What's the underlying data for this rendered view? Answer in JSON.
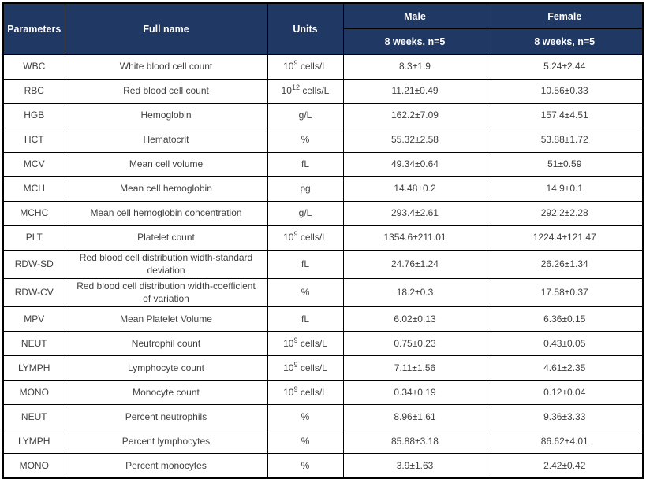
{
  "table": {
    "header": {
      "parameters": "Parameters",
      "full_name": "Full name",
      "units": "Units",
      "male": "Male",
      "female": "Female",
      "male_subheader": "8 weeks, n=5",
      "female_subheader": "8 weeks, n=5"
    },
    "rows": [
      {
        "param": "WBC",
        "full_name": "White blood cell count",
        "units": "10⁹ cells/L",
        "male": "8.3±1.9",
        "female": "5.24±2.44"
      },
      {
        "param": "RBC",
        "full_name": "Red blood cell count",
        "units": "10¹² cells/L",
        "male": "11.21±0.49",
        "female": "10.56±0.33"
      },
      {
        "param": "HGB",
        "full_name": "Hemoglobin",
        "units": "g/L",
        "male": "162.2±7.09",
        "female": "157.4±4.51"
      },
      {
        "param": "HCT",
        "full_name": "Hematocrit",
        "units": "%",
        "male": "55.32±2.58",
        "female": "53.88±1.72"
      },
      {
        "param": "MCV",
        "full_name": "Mean cell volume",
        "units": "fL",
        "male": "49.34±0.64",
        "female": "51±0.59"
      },
      {
        "param": "MCH",
        "full_name": "Mean cell hemoglobin",
        "units": "pg",
        "male": "14.48±0.2",
        "female": "14.9±0.1"
      },
      {
        "param": "MCHC",
        "full_name": "Mean cell hemoglobin concentration",
        "units": "g/L",
        "male": "293.4±2.61",
        "female": "292.2±2.28"
      },
      {
        "param": "PLT",
        "full_name": "Platelet count",
        "units": "10⁹ cells/L",
        "male": "1354.6±211.01",
        "female": "1224.4±121.47"
      },
      {
        "param": "RDW-SD",
        "full_name": "Red blood cell distribution width-standard deviation",
        "units": "fL",
        "male": "24.76±1.24",
        "female": "26.26±1.34"
      },
      {
        "param": "RDW-CV",
        "full_name": "Red blood cell distribution width-coefficient of variation",
        "units": "%",
        "male": "18.2±0.3",
        "female": "17.58±0.37"
      },
      {
        "param": "MPV",
        "full_name": "Mean Platelet Volume",
        "units": "fL",
        "male": "6.02±0.13",
        "female": "6.36±0.15"
      },
      {
        "param": "NEUT",
        "full_name": "Neutrophil count",
        "units": "10⁹ cells/L",
        "male": "0.75±0.23",
        "female": "0.43±0.05"
      },
      {
        "param": "LYMPH",
        "full_name": "Lymphocyte count",
        "units": "10⁹ cells/L",
        "male": "7.11±1.56",
        "female": "4.61±2.35"
      },
      {
        "param": "MONO",
        "full_name": "Monocyte count",
        "units": "10⁹ cells/L",
        "male": "0.34±0.19",
        "female": "0.12±0.04"
      },
      {
        "param": "NEUT",
        "full_name": "Percent neutrophils",
        "units": "%",
        "male": "8.96±1.61",
        "female": "9.36±3.33"
      },
      {
        "param": "LYMPH",
        "full_name": "Percent lymphocytes",
        "units": "%",
        "male": "85.88±3.18",
        "female": "86.62±4.01"
      },
      {
        "param": "MONO",
        "full_name": "Percent monocytes",
        "units": "%",
        "male": "3.9±1.63",
        "female": "2.42±0.42"
      }
    ],
    "colors": {
      "header_bg": "#203864",
      "header_text": "#ffffff",
      "body_text": "#3f3f3f",
      "border": "#000000"
    }
  }
}
